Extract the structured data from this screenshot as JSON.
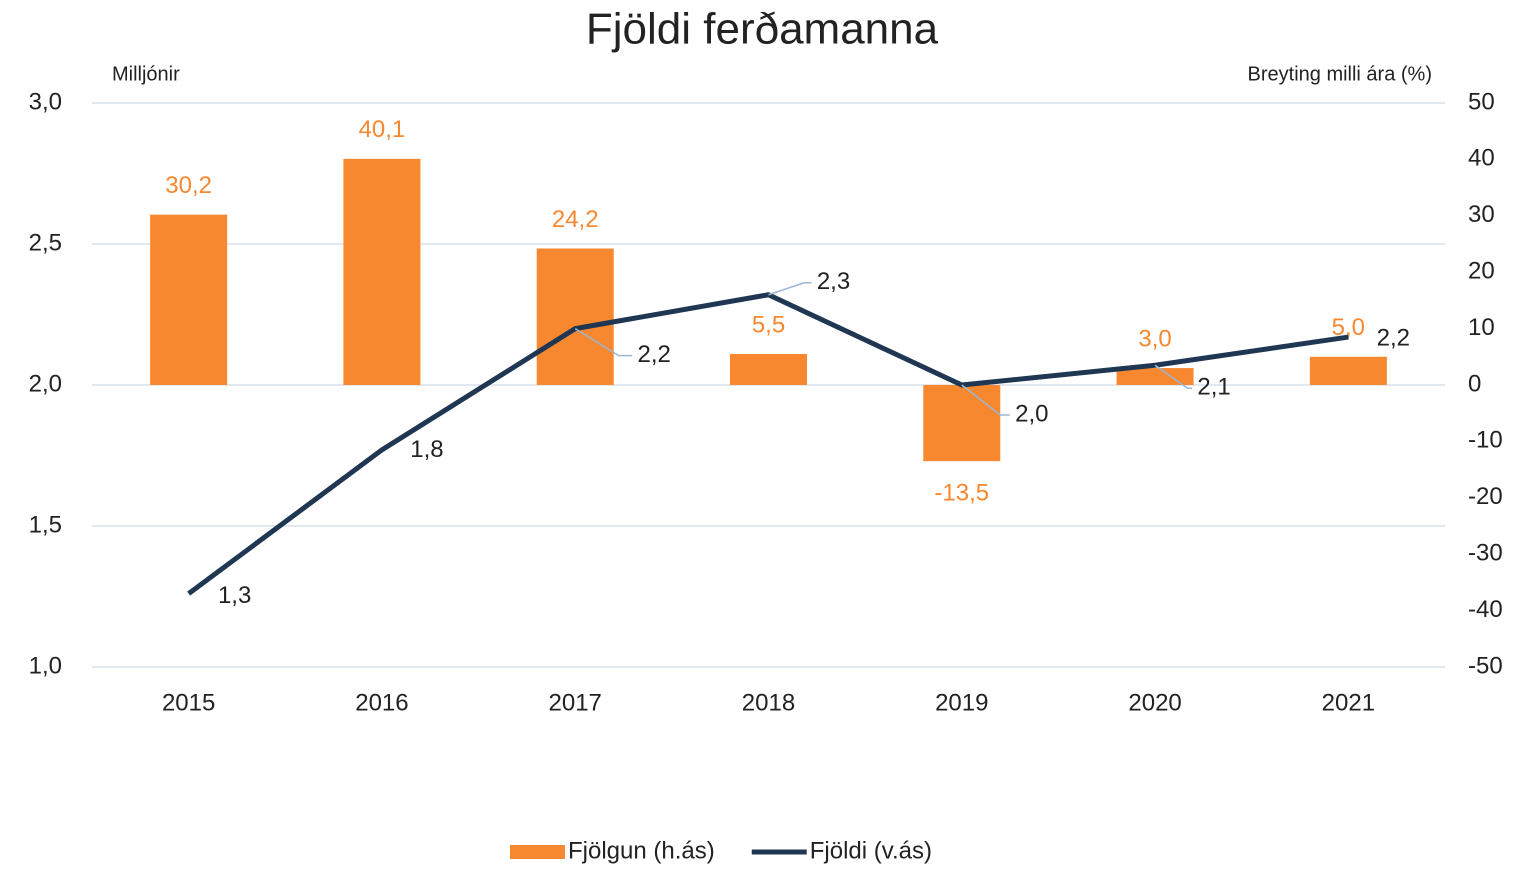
{
  "chart_data": {
    "type": "bar_line",
    "title": "Fjöldi ferðamanna",
    "ylabel": "Milljónir",
    "y2label": "Breyting milli ára (%)",
    "categories": [
      "2015",
      "2016",
      "2017",
      "2018",
      "2019",
      "2020",
      "2021"
    ],
    "series": [
      {
        "name": "Fjölgun (h.ás)",
        "type": "bar",
        "axis": "y2",
        "color": "#f7882f",
        "values": [
          30.2,
          40.1,
          24.2,
          5.5,
          -13.5,
          3.0,
          5.0
        ],
        "value_labels": [
          "30,2",
          "40,1",
          "24,2",
          "5,5",
          "-13,5",
          "3,0",
          "5,0"
        ]
      },
      {
        "name": "Fjöldi (v.ás)",
        "type": "line",
        "axis": "y",
        "color": "#1f3752",
        "values": [
          1.26,
          1.77,
          2.2,
          2.32,
          2.0,
          2.07,
          2.17
        ],
        "value_labels": [
          "1,3",
          "1,8",
          "2,2",
          "2,3",
          "2,0",
          "2,1",
          "2,2"
        ]
      }
    ],
    "ylim": [
      1,
      3
    ],
    "yticks": [
      {
        "value": 1,
        "label": "1,0"
      },
      {
        "value": 1.5,
        "label": "1,5"
      },
      {
        "value": 2,
        "label": "2,0"
      },
      {
        "value": 2.5,
        "label": "2,5"
      },
      {
        "value": 3,
        "label": "3,0"
      }
    ],
    "y2lim": [
      -50,
      50
    ],
    "y2ticks": [
      -50,
      -40,
      -30,
      -20,
      -10,
      0,
      10,
      20,
      30,
      40,
      50
    ],
    "grid": true,
    "legend": "bottom"
  }
}
